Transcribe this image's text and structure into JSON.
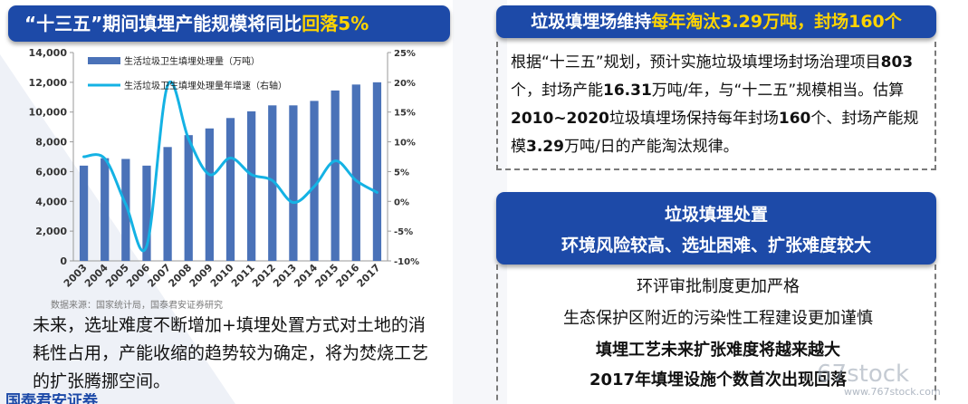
{
  "left_header": {
    "prefix": "“十三五”期间填埋产能规模将同比",
    "highlight": "回落5%"
  },
  "chart_data": {
    "type": "bar",
    "categories": [
      "2003",
      "2004",
      "2005",
      "2006",
      "2007",
      "2008",
      "2009",
      "2010",
      "2011",
      "2012",
      "2013",
      "2014",
      "2015",
      "2016",
      "2017"
    ],
    "series": [
      {
        "name": "生活垃圾卫生填埋处理量（万吨）",
        "type": "bar",
        "axis": "left",
        "values": [
          6400,
          6900,
          6850,
          6400,
          7650,
          8450,
          8900,
          9600,
          10050,
          10450,
          10450,
          10750,
          11450,
          11850,
          12000
        ]
      },
      {
        "name": "生活垃圾卫生填埋处理量年增速（右轴）",
        "type": "line",
        "axis": "right",
        "values": [
          7.5,
          7.2,
          -0.5,
          -7.5,
          19.5,
          10.5,
          4.5,
          7.3,
          4.5,
          3.5,
          -0.2,
          2.5,
          6.8,
          3.5,
          1.5
        ]
      }
    ],
    "ylim_left": [
      0,
      14000
    ],
    "yticks_left": [
      "0",
      "2,000",
      "4,000",
      "6,000",
      "8,000",
      "10,000",
      "12,000",
      "14,000"
    ],
    "ylim_right": [
      -10,
      25
    ],
    "yticks_right": [
      "-10%",
      "-5%",
      "0%",
      "5%",
      "10%",
      "15%",
      "20%",
      "25%"
    ],
    "legend_position": "top-left",
    "colors": {
      "bar": "#4a72b8",
      "line": "#14b2e4"
    },
    "source": "数据来源：国家统计局，国泰君安证券研究"
  },
  "left_paragraph": "未来，选址难度不断增加+填埋处置方式对土地的消耗性占用，产能收缩的趋势较为确定，将为焚烧工艺的扩张腾挪空间。",
  "left_logo": "国泰君安证券",
  "right_header1": {
    "prefix": "垃圾填埋场维持",
    "highlight": "每年淘汰3.29万吨，封场160个"
  },
  "right_box1": {
    "p1": "根据“十三五”规划，预计实施垃圾填埋场封场治理项目",
    "b1": "803",
    "p2": "个，封场产能",
    "b2": "16.31",
    "p3": "万吨/年，与“十二五”规模相当。估算",
    "b3": "2010~2020",
    "p4": "垃圾填埋场保持每年封场",
    "b4": "160",
    "p5": "个、封场产能规模",
    "b5": "3.29",
    "p6": "万吨/日的产能淘汰规律。"
  },
  "right_header2": {
    "line1": "垃圾填埋处置",
    "line2": "环境风险较高、选址困难、扩张难度较大"
  },
  "right_box2": {
    "line1": "环评审批制度更加严格",
    "line2": "生态保护区附近的污染性工程建设更加谨慎",
    "line3": "填埋工艺未来扩张难度将越来越大",
    "line4": "2017年填埋设施个数首次出现回落"
  },
  "watermark": {
    "main": "67stock",
    "sub": "www.767stock.com"
  }
}
